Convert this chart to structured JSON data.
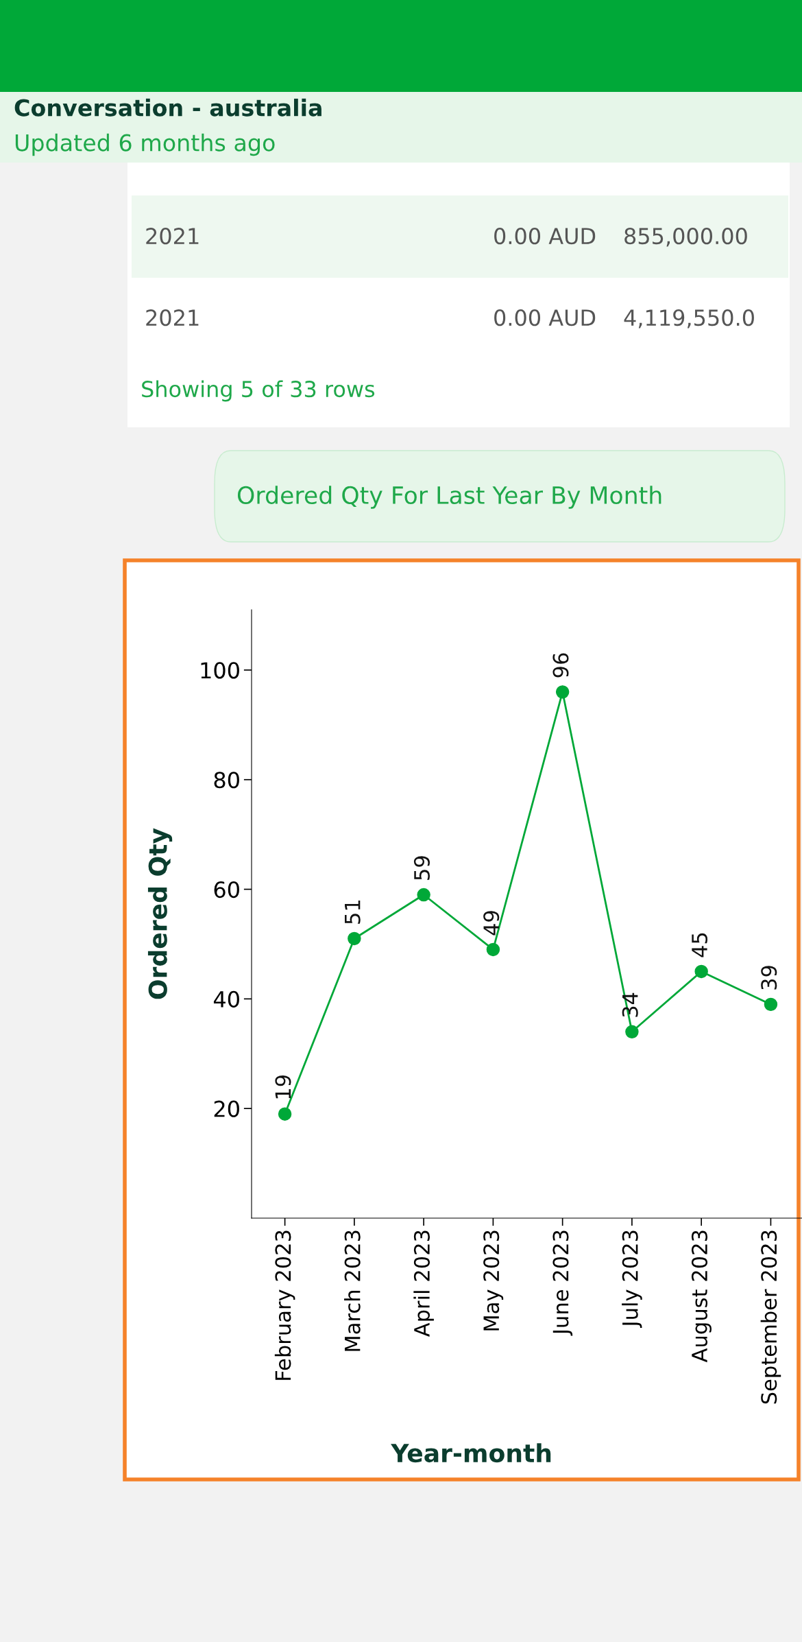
{
  "chart_data": {
    "type": "line",
    "xlabel": "Year-month",
    "ylabel": "Ordered Qty",
    "categories": [
      "February 2023",
      "March 2023",
      "April 2023",
      "May 2023",
      "June 2023",
      "July 2023",
      "August 2023",
      "September 2023"
    ],
    "series": [
      {
        "color": "#00a838",
        "values": [
          19,
          51,
          59,
          49,
          96,
          34,
          45,
          39
        ]
      }
    ],
    "ylim": [
      0,
      111
    ],
    "yticks": [
      20,
      40,
      60,
      80,
      100
    ],
    "marker": "circle",
    "line_style": "solid",
    "data_labels": true,
    "grid": false,
    "legend": false,
    "annotations": [
      "Conversation - australia",
      "Updated 6 months ago",
      "2021",
      "0.00 AUD",
      "855,000.00",
      "2021",
      "0.00 AUD",
      "4,119,550.0",
      "Showing 5 of 33 rows",
      "Ordered Qty For Last Year By Month"
    ]
  }
}
